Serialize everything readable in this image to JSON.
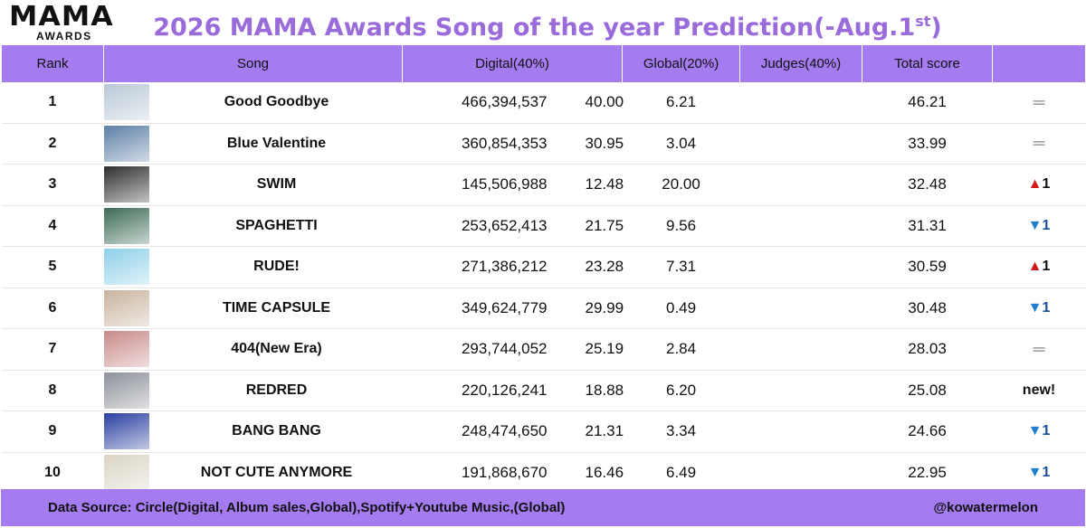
{
  "logo": {
    "line1": "MAMA",
    "line2": "AWARDS"
  },
  "title": {
    "main": "2026 MAMA Awards Song of the year Prediction(-Aug.1",
    "sup": "st",
    "close": ")"
  },
  "headers": {
    "rank": "Rank",
    "song": "Song",
    "digital": "Digital(40%)",
    "global": "Global(20%)",
    "judges": "Judges(40%)",
    "total": "Total score",
    "change": ""
  },
  "rows": [
    {
      "rank": "1",
      "song": "Good Goodbye",
      "streams": "466,394,537",
      "digital_score": "40.00",
      "global": "6.21",
      "judges": "",
      "total": "46.21",
      "change_type": "same",
      "change_text": "",
      "thumb_color": "#b9c8d6"
    },
    {
      "rank": "2",
      "song": "Blue Valentine",
      "streams": "360,854,353",
      "digital_score": "30.95",
      "global": "3.04",
      "judges": "",
      "total": "33.99",
      "change_type": "same",
      "change_text": "",
      "thumb_color": "#5d7fa6"
    },
    {
      "rank": "3",
      "song": "SWIM",
      "streams": "145,506,988",
      "digital_score": "12.48",
      "global": "20.00",
      "judges": "",
      "total": "32.48",
      "change_type": "up",
      "change_text": "1",
      "thumb_color": "#2e2e2e"
    },
    {
      "rank": "4",
      "song": "SPAGHETTI",
      "streams": "253,652,413",
      "digital_score": "21.75",
      "global": "9.56",
      "judges": "",
      "total": "31.31",
      "change_type": "down",
      "change_text": "1",
      "thumb_color": "#3d6b56"
    },
    {
      "rank": "5",
      "song": "RUDE!",
      "streams": "271,386,212",
      "digital_score": "23.28",
      "global": "7.31",
      "judges": "",
      "total": "30.59",
      "change_type": "up",
      "change_text": "1",
      "thumb_color": "#8fd0e8"
    },
    {
      "rank": "6",
      "song": "TIME CAPSULE",
      "streams": "349,624,779",
      "digital_score": "29.99",
      "global": "0.49",
      "judges": "",
      "total": "30.48",
      "change_type": "down",
      "change_text": "1",
      "thumb_color": "#c8b39e"
    },
    {
      "rank": "7",
      "song": "404(New Era)",
      "streams": "293,744,052",
      "digital_score": "25.19",
      "global": "2.84",
      "judges": "",
      "total": "28.03",
      "change_type": "same",
      "change_text": "",
      "thumb_color": "#c98a8a"
    },
    {
      "rank": "8",
      "song": "REDRED",
      "streams": "220,126,241",
      "digital_score": "18.88",
      "global": "6.20",
      "judges": "",
      "total": "25.08",
      "change_type": "new",
      "change_text": "new!",
      "thumb_color": "#8c9098"
    },
    {
      "rank": "9",
      "song": "BANG BANG",
      "streams": "248,474,650",
      "digital_score": "21.31",
      "global": "3.34",
      "judges": "",
      "total": "24.66",
      "change_type": "down",
      "change_text": "1",
      "thumb_color": "#2a3fa0"
    },
    {
      "rank": "10",
      "song": "NOT CUTE ANYMORE",
      "streams": "191,868,670",
      "digital_score": "16.46",
      "global": "6.49",
      "judges": "",
      "total": "22.95",
      "change_type": "down",
      "change_text": "1",
      "thumb_color": "#d9d4c4"
    }
  ],
  "footer": {
    "source": "Data Source: Circle(Digital, Album sales,Global),Spotify+Youtube Music,(Global)",
    "handle": "@kowatermelon"
  },
  "colors": {
    "header_bg": "#a57bf0",
    "title": "#9a6bdb",
    "up": "#d21a1a",
    "down": "#1d7fce"
  }
}
